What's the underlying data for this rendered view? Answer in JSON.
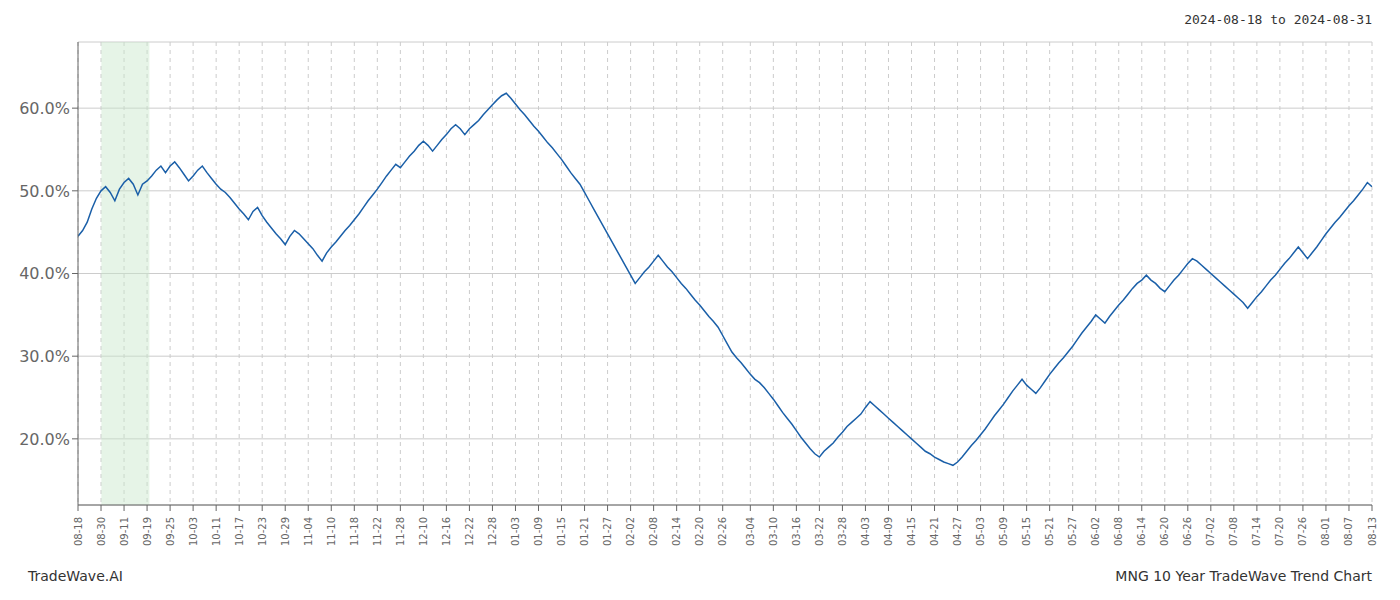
{
  "chart_data": {
    "type": "line",
    "color": "#1a5fa8",
    "grid": true,
    "annotations": [
      "2024-08-18 to 2024-08-31",
      "TradeWave.AI",
      "MNG 10 Year TradeWave Trend Chart"
    ],
    "highlight": {
      "start": 5.076,
      "end": 15.51,
      "color": "#c8e6c9"
    },
    "ylim": [
      0.12,
      0.68
    ],
    "yticks": [
      {
        "value": 0.2,
        "label": "20.0%"
      },
      {
        "value": 0.3,
        "label": "30.0%"
      },
      {
        "value": 0.4,
        "label": "40.0%"
      },
      {
        "value": 0.5,
        "label": "50.0%"
      },
      {
        "value": 0.6,
        "label": "60.0%"
      }
    ],
    "categories": [
      "08-18",
      null,
      null,
      null,
      null,
      "08-30",
      null,
      null,
      null,
      null,
      "09-11",
      null,
      null,
      null,
      null,
      "09-19",
      null,
      null,
      null,
      null,
      "09-25",
      null,
      null,
      null,
      null,
      "10-03",
      null,
      null,
      null,
      null,
      "10-11",
      null,
      null,
      null,
      null,
      "10-17",
      null,
      null,
      null,
      null,
      "10-23",
      null,
      null,
      null,
      null,
      "10-29",
      null,
      null,
      null,
      null,
      "11-04",
      null,
      null,
      null,
      null,
      "11-10",
      null,
      null,
      null,
      null,
      "11-18",
      null,
      null,
      null,
      null,
      "11-22",
      null,
      null,
      null,
      null,
      "11-28",
      null,
      null,
      null,
      null,
      "12-10",
      null,
      null,
      null,
      null,
      "12-16",
      null,
      null,
      null,
      null,
      "12-22",
      null,
      null,
      null,
      null,
      "12-28",
      null,
      null,
      null,
      null,
      "01-03",
      null,
      null,
      null,
      null,
      "01-09",
      null,
      null,
      null,
      null,
      "01-15",
      null,
      null,
      null,
      null,
      "01-21",
      null,
      null,
      null,
      null,
      "01-27",
      null,
      null,
      null,
      null,
      "02-02",
      null,
      null,
      null,
      null,
      "02-08",
      null,
      null,
      null,
      null,
      "02-14",
      null,
      null,
      null,
      null,
      "02-20",
      null,
      null,
      null,
      null,
      "02-26",
      null,
      null,
      null,
      null,
      null,
      "03-04",
      null,
      null,
      null,
      null,
      "03-10",
      null,
      null,
      null,
      null,
      "03-16",
      null,
      null,
      null,
      null,
      "03-22",
      null,
      null,
      null,
      null,
      "03-28",
      null,
      null,
      null,
      null,
      "04-03",
      null,
      null,
      null,
      null,
      "04-09",
      null,
      null,
      null,
      null,
      "04-15",
      null,
      null,
      null,
      null,
      "04-21",
      null,
      null,
      null,
      null,
      "04-27",
      null,
      null,
      null,
      null,
      "05-03",
      null,
      null,
      null,
      null,
      "05-09",
      null,
      null,
      null,
      null,
      "05-15",
      null,
      null,
      null,
      null,
      "05-21",
      null,
      null,
      null,
      null,
      "05-27",
      null,
      null,
      null,
      null,
      "06-02",
      null,
      null,
      null,
      null,
      "06-08",
      null,
      null,
      null,
      null,
      "06-14",
      null,
      null,
      null,
      null,
      "06-20",
      null,
      null,
      null,
      null,
      "06-26",
      null,
      null,
      null,
      null,
      "07-02",
      null,
      null,
      null,
      null,
      "07-08",
      null,
      null,
      null,
      null,
      "07-14",
      null,
      null,
      null,
      null,
      "07-20",
      null,
      null,
      null,
      null,
      "07-26",
      null,
      null,
      null,
      null,
      "08-01",
      null,
      null,
      null,
      null,
      "08-07",
      null,
      null,
      null,
      null,
      "08-13"
    ],
    "values": [
      0.445,
      0.452,
      0.462,
      0.478,
      0.491,
      0.5,
      0.505,
      0.498,
      0.488,
      0.502,
      0.51,
      0.515,
      0.508,
      0.495,
      0.508,
      0.512,
      0.518,
      0.525,
      0.53,
      0.522,
      0.53,
      0.535,
      0.528,
      0.52,
      0.512,
      0.518,
      0.525,
      0.53,
      0.522,
      0.515,
      0.508,
      0.502,
      0.498,
      0.492,
      0.485,
      0.478,
      0.472,
      0.465,
      0.475,
      0.48,
      0.47,
      0.462,
      0.455,
      0.448,
      0.442,
      0.435,
      0.445,
      0.452,
      0.448,
      0.442,
      0.436,
      0.43,
      0.422,
      0.415,
      0.425,
      0.432,
      0.438,
      0.445,
      0.452,
      0.458,
      0.465,
      0.472,
      0.48,
      0.488,
      0.495,
      0.502,
      0.51,
      0.518,
      0.525,
      0.532,
      0.528,
      0.535,
      0.542,
      0.548,
      0.555,
      0.56,
      0.555,
      0.548,
      0.555,
      0.562,
      0.568,
      0.575,
      0.58,
      0.575,
      0.568,
      0.575,
      0.58,
      0.585,
      0.592,
      0.598,
      0.604,
      0.61,
      0.615,
      0.618,
      0.612,
      0.605,
      0.598,
      0.592,
      0.585,
      0.578,
      0.572,
      0.565,
      0.558,
      0.552,
      0.545,
      0.538,
      0.53,
      0.522,
      0.515,
      0.508,
      0.498,
      0.488,
      0.478,
      0.468,
      0.458,
      0.448,
      0.438,
      0.428,
      0.418,
      0.408,
      0.398,
      0.388,
      0.395,
      0.402,
      0.408,
      0.415,
      0.422,
      0.415,
      0.408,
      0.402,
      0.395,
      0.388,
      0.382,
      0.375,
      0.368,
      0.362,
      0.355,
      0.348,
      0.342,
      0.335,
      0.325,
      0.315,
      0.305,
      0.298,
      0.292,
      0.285,
      0.278,
      0.272,
      0.268,
      0.262,
      0.255,
      0.248,
      0.24,
      0.232,
      0.225,
      0.218,
      0.21,
      0.202,
      0.195,
      0.188,
      0.182,
      0.178,
      0.185,
      0.19,
      0.195,
      0.202,
      0.208,
      0.215,
      0.22,
      0.225,
      0.23,
      0.238,
      0.245,
      0.24,
      0.235,
      0.23,
      0.225,
      0.22,
      0.215,
      0.21,
      0.205,
      0.2,
      0.195,
      0.19,
      0.185,
      0.182,
      0.178,
      0.175,
      0.172,
      0.17,
      0.168,
      0.172,
      0.178,
      0.185,
      0.192,
      0.198,
      0.205,
      0.212,
      0.22,
      0.228,
      0.235,
      0.242,
      0.25,
      0.258,
      0.265,
      0.272,
      0.265,
      0.26,
      0.255,
      0.262,
      0.27,
      0.278,
      0.285,
      0.292,
      0.298,
      0.305,
      0.312,
      0.32,
      0.328,
      0.335,
      0.342,
      0.35,
      0.345,
      0.34,
      0.348,
      0.355,
      0.362,
      0.368,
      0.375,
      0.382,
      0.388,
      0.392,
      0.398,
      0.392,
      0.388,
      0.382,
      0.378,
      0.385,
      0.392,
      0.398,
      0.405,
      0.412,
      0.418,
      0.415,
      0.41,
      0.405,
      0.4,
      0.395,
      0.39,
      0.385,
      0.38,
      0.375,
      0.37,
      0.365,
      0.358,
      0.365,
      0.372,
      0.378,
      0.385,
      0.392,
      0.398,
      0.405,
      0.412,
      0.418,
      0.425,
      0.432,
      0.425,
      0.418,
      0.425,
      0.432,
      0.44,
      0.448,
      0.455,
      0.462,
      0.468,
      0.475,
      0.482,
      0.488,
      0.495,
      0.502,
      0.51,
      0.505
    ]
  }
}
